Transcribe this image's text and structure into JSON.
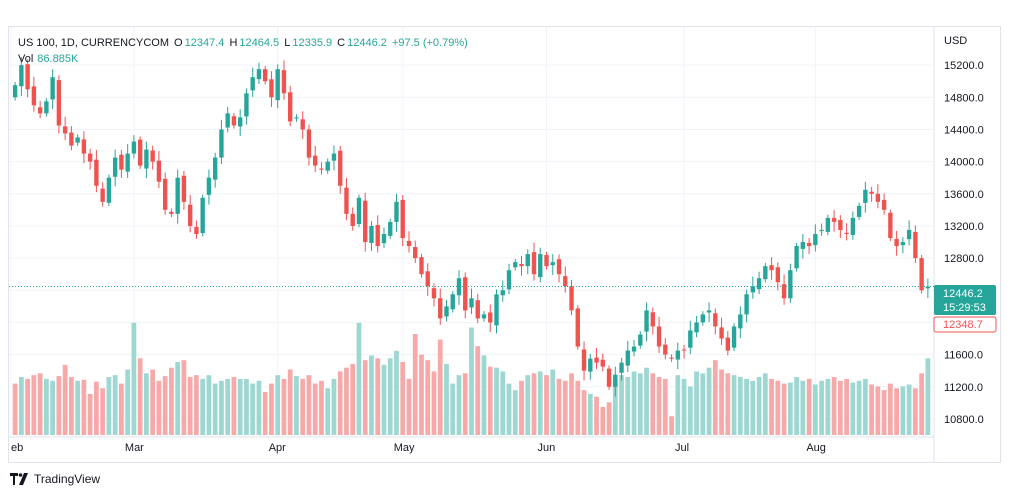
{
  "header": {
    "symbol": "US 100, 1D, CURRENCYCOM",
    "open_label": "O",
    "open": "12347.4",
    "high_label": "H",
    "high": "12464.5",
    "low_label": "L",
    "low": "12335.9",
    "close_label": "C",
    "close": "12446.2",
    "change": "+97.5 (+0.79%)",
    "vol_label": "Vol",
    "vol": "86.885K"
  },
  "axis": {
    "currency": "USD"
  },
  "price_labels": {
    "last_price": "12446.2",
    "countdown": "15:29:53",
    "prev_close": "12348.7"
  },
  "brand": {
    "name": "TradingView"
  },
  "colors": {
    "up": "#26a69a",
    "down": "#ef5350",
    "up_vol": "#9dd7d2",
    "down_vol": "#f6a9a8",
    "grid": "#f0f3fa"
  },
  "chart_data": {
    "type": "candlestick",
    "title": "US 100, 1D, CURRENCYCOM",
    "y_unit": "USD",
    "ylim": [
      10600,
      15550
    ],
    "y_ticks": [
      10800,
      11200,
      11600,
      12000,
      12400,
      12800,
      13200,
      13600,
      14000,
      14400,
      14800,
      15200
    ],
    "x_tick_labels": [
      {
        "label": "eb",
        "index": 0
      },
      {
        "label": "Mar",
        "index": 19
      },
      {
        "label": "Apr",
        "index": 42
      },
      {
        "label": "May",
        "index": 62
      },
      {
        "label": "Jun",
        "index": 85
      },
      {
        "label": "Jul",
        "index": 107
      },
      {
        "label": "Aug",
        "index": 128
      }
    ],
    "grid": true,
    "last_price": 12446.2,
    "prev_close": 12348.7,
    "series": [
      {
        "name": "US 100",
        "closes": [
          14950,
          15200,
          14900,
          14700,
          14600,
          14750,
          15050,
          14450,
          14350,
          14200,
          14300,
          14100,
          14000,
          13700,
          13500,
          13800,
          14050,
          13900,
          14100,
          14250,
          13950,
          14150,
          14000,
          13750,
          13400,
          13350,
          13800,
          13500,
          13200,
          13100,
          13550,
          13800,
          14050,
          14400,
          14600,
          14450,
          14550,
          14850,
          15050,
          15150,
          15000,
          14800,
          15150,
          14850,
          14500,
          14550,
          14400,
          14050,
          13950,
          13900,
          14000,
          14100,
          13700,
          13350,
          13200,
          13550,
          13000,
          13200,
          12950,
          13100,
          13250,
          13500,
          13050,
          12950,
          12800,
          12600,
          12450,
          12300,
          12050,
          12200,
          12350,
          12550,
          12150,
          12300,
          12050,
          12100,
          12000,
          12350,
          12400,
          12650,
          12750,
          12700,
          12850,
          12600,
          12850,
          12700,
          12750,
          12600,
          12450,
          12150,
          11700,
          11400,
          11550,
          11500,
          11450,
          11200,
          11350,
          11500,
          11650,
          11700,
          11850,
          12150,
          11950,
          11700,
          11600,
          11550,
          11650,
          11650,
          11900,
          12000,
          12100,
          12150,
          11950,
          11800,
          11650,
          11950,
          12100,
          12350,
          12450,
          12550,
          12700,
          12650,
          12500,
          12300,
          12650,
          12950,
          13000,
          12950,
          13100,
          13150,
          13300,
          13250,
          13150,
          13100,
          13300,
          13450,
          13650,
          13600,
          13500,
          13400,
          13050,
          12950,
          13000,
          13150,
          12800,
          12400,
          12446
        ]
      },
      {
        "name": "Vol",
        "relative": [
          0.55,
          0.62,
          0.6,
          0.64,
          0.66,
          0.6,
          0.58,
          0.63,
          0.75,
          0.62,
          0.58,
          0.59,
          0.44,
          0.57,
          0.5,
          0.62,
          0.64,
          0.55,
          0.7,
          1.2,
          0.82,
          0.66,
          0.7,
          0.58,
          0.63,
          0.72,
          0.78,
          0.8,
          0.62,
          0.64,
          0.6,
          0.64,
          0.55,
          0.58,
          0.6,
          0.62,
          0.6,
          0.6,
          0.55,
          0.58,
          0.46,
          0.55,
          0.64,
          0.6,
          0.7,
          0.63,
          0.6,
          0.64,
          0.55,
          0.58,
          0.5,
          0.6,
          0.68,
          0.72,
          0.76,
          1.2,
          0.8,
          0.85,
          0.82,
          0.75,
          0.82,
          0.9,
          0.78,
          0.6,
          1.08,
          0.86,
          0.8,
          0.68,
          1.02,
          0.76,
          0.55,
          0.64,
          0.66,
          1.15,
          0.95,
          0.85,
          0.73,
          0.72,
          0.68,
          0.55,
          0.48,
          0.58,
          0.64,
          0.66,
          0.68,
          0.64,
          0.7,
          0.6,
          0.58,
          0.66,
          0.58,
          0.48,
          0.44,
          0.41,
          0.3,
          0.35,
          0.6,
          0.64,
          0.62,
          0.68,
          0.66,
          0.72,
          0.66,
          0.62,
          0.6,
          0.2,
          0.64,
          0.6,
          0.52,
          0.68,
          0.66,
          0.72,
          0.8,
          0.7,
          0.66,
          0.64,
          0.62,
          0.6,
          0.58,
          0.62,
          0.66,
          0.6,
          0.58,
          0.55,
          0.56,
          0.62,
          0.58,
          0.6,
          0.54,
          0.58,
          0.6,
          0.62,
          0.58,
          0.6,
          0.56,
          0.58,
          0.6,
          0.54,
          0.52,
          0.48,
          0.55,
          0.5,
          0.52,
          0.54,
          0.5,
          0.66,
          0.82
        ]
      }
    ]
  }
}
